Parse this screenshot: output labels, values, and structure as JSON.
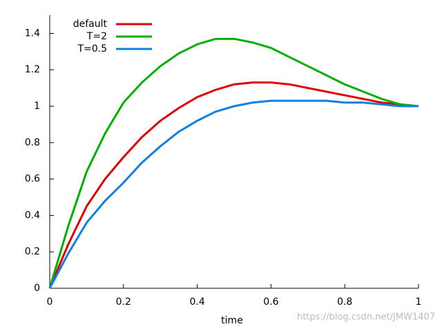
{
  "chart_data": {
    "type": "line",
    "x_label": "time",
    "watermark": "https://blog.csdn.net/JMW1407",
    "x": [
      0,
      0.05,
      0.1,
      0.15,
      0.2,
      0.25,
      0.3,
      0.35,
      0.4,
      0.45,
      0.5,
      0.55,
      0.6,
      0.65,
      0.7,
      0.75,
      0.8,
      0.85,
      0.9,
      0.95,
      1
    ],
    "series": [
      {
        "name": "default",
        "color": "#e00000",
        "values": [
          0,
          0.24,
          0.45,
          0.6,
          0.72,
          0.83,
          0.92,
          0.99,
          1.05,
          1.09,
          1.12,
          1.13,
          1.13,
          1.12,
          1.1,
          1.08,
          1.06,
          1.04,
          1.02,
          1.01,
          1.0
        ]
      },
      {
        "name": "T=2",
        "color": "#00b000",
        "values": [
          0,
          0.34,
          0.64,
          0.85,
          1.02,
          1.13,
          1.22,
          1.29,
          1.34,
          1.37,
          1.37,
          1.35,
          1.32,
          1.27,
          1.22,
          1.17,
          1.12,
          1.08,
          1.04,
          1.01,
          1.0
        ]
      },
      {
        "name": "T=0.5",
        "color": "#1080e0",
        "values": [
          0,
          0.19,
          0.36,
          0.48,
          0.58,
          0.69,
          0.78,
          0.86,
          0.92,
          0.97,
          1.0,
          1.02,
          1.03,
          1.03,
          1.03,
          1.03,
          1.02,
          1.02,
          1.01,
          1.0,
          1.0
        ]
      }
    ],
    "xlim": [
      0,
      1
    ],
    "xticks": [
      0,
      0.2,
      0.4,
      0.6,
      0.8,
      1
    ],
    "ylim": [
      0,
      1.5
    ],
    "yticks": [
      0,
      0.2,
      0.4,
      0.6,
      0.8,
      1,
      1.2,
      1.4
    ],
    "grid": false,
    "legend": "top-left"
  }
}
